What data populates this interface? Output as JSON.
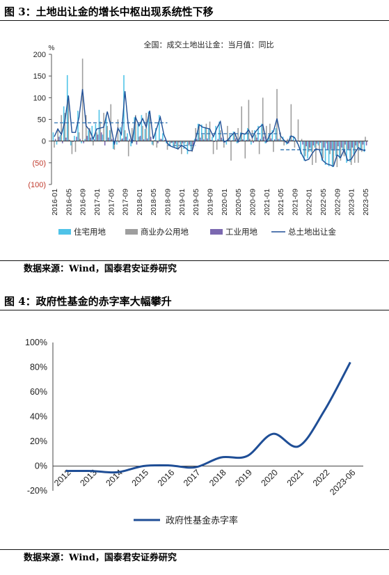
{
  "figure3": {
    "title": "图 3：土地出让金的增长中枢出现系统性下移",
    "source": "数据来源：Wind，国泰君安证券研究"
  },
  "figure4": {
    "title": "图 4：政府性基金的赤字率大幅攀升",
    "source": "数据来源：Wind，国泰君安证券研究"
  },
  "colors": {
    "residential": "#4fc3e8",
    "commercial": "#9e9e9e",
    "industrial": "#7b68b0",
    "total_line": "#1f4e96",
    "dashed_avg": "#3a7bb5",
    "deficit_line": "#1f4e96"
  },
  "chart_data": [
    {
      "type": "bar",
      "title": "全国：成交土地出让金：当月值：同比",
      "ylabel": "%",
      "ylim": [
        -100,
        200
      ],
      "y_ticks": [
        "200",
        "150",
        "100",
        "50",
        "0",
        "(50)",
        "(100)"
      ],
      "grid": false,
      "legend_position": "bottom",
      "x_tick_labels": [
        "2016-01",
        "2016-05",
        "2016-09",
        "2017-01",
        "2017-05",
        "2017-09",
        "2018-01",
        "2018-05",
        "2018-09",
        "2019-01",
        "2019-05",
        "2019-09",
        "2020-01",
        "2020-05",
        "2020-09",
        "2021-01",
        "2021-05",
        "2021-09",
        "2022-01",
        "2022-05",
        "2022-09",
        "2023-01",
        "2023-05"
      ],
      "series": [
        {
          "name": "住宅用地",
          "kind": "bar",
          "values": [
            20,
            -8,
            14,
            80,
            152,
            -10,
            12,
            70,
            -5,
            5,
            25,
            35,
            40,
            72,
            15,
            60,
            25,
            -18,
            -8,
            32,
            152,
            18,
            -12,
            55,
            40,
            60,
            28,
            68,
            -8,
            30,
            60,
            18,
            -5,
            -12,
            -15,
            -18,
            -8,
            -18,
            -30,
            -20,
            5,
            40,
            38,
            32,
            28,
            10,
            35,
            45,
            5,
            -8,
            15,
            22,
            -5,
            20,
            18,
            30,
            -8,
            25,
            35,
            40,
            -5,
            15,
            25,
            30,
            5,
            10,
            -8,
            12,
            12,
            -5,
            -30,
            -45,
            -40,
            -25,
            -15,
            -10,
            -45,
            -55,
            -58,
            -60,
            -35,
            -40,
            -20,
            -50,
            -48,
            -30,
            -15,
            -20,
            -25,
            -10,
            -5,
            -30,
            -20,
            -25,
            -15,
            -5,
            -8,
            -25,
            -20,
            -12
          ]
        },
        {
          "name": "商业办公用地",
          "kind": "bar",
          "values": [
            -15,
            25,
            60,
            65,
            100,
            -30,
            -25,
            20,
            190,
            60,
            30,
            -10,
            20,
            45,
            65,
            35,
            85,
            -20,
            50,
            5,
            25,
            -35,
            30,
            60,
            10,
            35,
            65,
            60,
            -10,
            -15,
            5,
            0,
            -20,
            -5,
            -15,
            -20,
            -30,
            -5,
            -10,
            -25,
            30,
            35,
            15,
            40,
            45,
            -30,
            -20,
            25,
            -15,
            35,
            -45,
            20,
            30,
            80,
            -40,
            95,
            25,
            15,
            -30,
            100,
            35,
            40,
            -25,
            120,
            20,
            -10,
            5,
            85,
            -15,
            50,
            5,
            -35,
            -25,
            -55,
            -50,
            -20,
            -40,
            -5,
            -30,
            -55,
            -60,
            -45,
            -35,
            -20,
            -55,
            -50,
            -50,
            -25,
            10,
            -30,
            25,
            5,
            -40,
            -20,
            30,
            -10,
            20,
            10,
            35,
            -15,
            -20,
            5,
            15
          ]
        },
        {
          "name": "工业用地",
          "kind": "bar",
          "values": [
            5,
            10,
            -5,
            8,
            3,
            -2,
            10,
            5,
            -5,
            12,
            8,
            4,
            15,
            20,
            -10,
            8,
            5,
            2,
            -3,
            6,
            10,
            5,
            3,
            -8,
            12,
            4,
            6,
            10,
            2,
            -5,
            5,
            3,
            -2,
            -4,
            -6,
            -3,
            -5,
            -2,
            -8,
            -10,
            5,
            8,
            4,
            6,
            3,
            -2,
            5,
            8,
            -3,
            4,
            2,
            6,
            -2,
            4,
            3,
            5,
            -4,
            8,
            5,
            10,
            -2,
            6,
            4,
            5,
            2,
            -3,
            -5,
            3,
            2,
            -2,
            -8,
            -12,
            -15,
            -10,
            -6,
            -4,
            -15,
            -20,
            -18,
            -22,
            -12,
            -15,
            -8,
            -18,
            -15,
            -10,
            -5,
            -8,
            -10,
            -4,
            -2,
            -10,
            -6,
            -8,
            -5,
            -2,
            -3,
            -8,
            -6,
            -4
          ]
        },
        {
          "name": "总土地出让金",
          "kind": "line",
          "values": [
            10,
            28,
            15,
            45,
            105,
            20,
            20,
            55,
            120,
            35,
            25,
            5,
            28,
            30,
            32,
            68,
            35,
            -8,
            30,
            15,
            115,
            30,
            -5,
            55,
            35,
            52,
            32,
            70,
            5,
            30,
            55,
            15,
            -5,
            -12,
            -15,
            -18,
            -10,
            -15,
            -22,
            -22,
            5,
            38,
            32,
            30,
            28,
            10,
            30,
            45,
            -2,
            2,
            12,
            20,
            -2,
            18,
            16,
            26,
            8,
            22,
            32,
            38,
            -2,
            15,
            22,
            52,
            12,
            2,
            -5,
            12,
            8,
            -8,
            -30,
            -45,
            -42,
            -28,
            -18,
            -20,
            -45,
            -52,
            -55,
            -58,
            -32,
            -38,
            -20,
            -45,
            -42,
            -28,
            -15,
            -20,
            -22,
            -8,
            -5,
            -28,
            -20,
            -22,
            -15,
            -5,
            -6,
            -22,
            -20,
            -18
          ]
        },
        {
          "name": "",
          "kind": "dashed_average",
          "segments": [
            {
              "from": "2016-01",
              "to": "2018-09",
              "value": 42
            },
            {
              "from": "2018-09",
              "to": "2019-05",
              "value": -10
            },
            {
              "from": "2019-05",
              "to": "2021-05",
              "value": 17
            },
            {
              "from": "2021-05",
              "to": "2023-05",
              "value": -20
            }
          ]
        }
      ]
    },
    {
      "type": "line",
      "title": "",
      "xlabel": "",
      "ylabel": "",
      "ylim": [
        -20,
        100
      ],
      "y_ticks": [
        "100%",
        "80%",
        "60%",
        "40%",
        "20%",
        "0%",
        "-20%"
      ],
      "grid": false,
      "legend_position": "bottom",
      "categories": [
        "2012",
        "2013",
        "2014",
        "2015",
        "2016",
        "2017",
        "2018",
        "2019",
        "2020",
        "2021",
        "2022",
        "2023-06"
      ],
      "series": [
        {
          "name": "政府性基金赤字率",
          "values": [
            -4,
            -4,
            -5,
            0,
            0.5,
            -1,
            7,
            8,
            26,
            16,
            45,
            84
          ]
        }
      ]
    }
  ]
}
